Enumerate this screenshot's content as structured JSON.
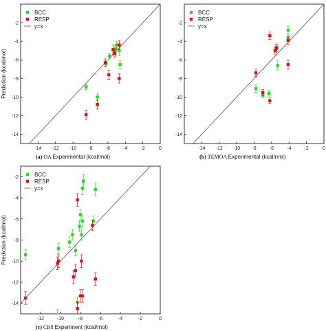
{
  "colors": {
    "BCC": "#22dd22",
    "RESP": "#dd1111",
    "y=x": "#555555"
  },
  "chart_data": [
    {
      "type": "scatter",
      "panel_label": "(a)",
      "panel_name": "OA",
      "xlabel": "Experimental (kcal/mol)",
      "ylabel": "Prediction (kcal/mol)",
      "xlim": [
        -16,
        0
      ],
      "ylim": [
        -15,
        0
      ],
      "xticks": [
        -14,
        -12,
        -10,
        -8,
        -6,
        -4,
        -2,
        0
      ],
      "yticks": [
        -14,
        -12,
        -10,
        -8,
        -6,
        -4,
        -2
      ],
      "show_ylabel": true,
      "legend": [
        "BCC",
        "RESP",
        "y=x"
      ],
      "series": [
        {
          "name": "BCC",
          "points": [
            {
              "x": -8.5,
              "y": -8.9,
              "e": 0.3
            },
            {
              "x": -7.2,
              "y": -10.0,
              "e": 0.4
            },
            {
              "x": -6.2,
              "y": -6.4,
              "e": 0.3
            },
            {
              "x": -5.8,
              "y": -5.6,
              "e": 0.3
            },
            {
              "x": -5.3,
              "y": -5.2,
              "e": 0.3
            },
            {
              "x": -5.0,
              "y": -4.4,
              "e": 0.4
            },
            {
              "x": -4.7,
              "y": -5.0,
              "e": 0.5
            },
            {
              "x": -4.6,
              "y": -6.5,
              "e": 0.4
            },
            {
              "x": -5.1,
              "y": -4.8,
              "e": 0.3
            }
          ]
        },
        {
          "name": "RESP",
          "points": [
            {
              "x": -8.5,
              "y": -11.9,
              "e": 0.5
            },
            {
              "x": -7.2,
              "y": -10.8,
              "e": 0.5
            },
            {
              "x": -6.3,
              "y": -6.3,
              "e": 0.4
            },
            {
              "x": -5.9,
              "y": -7.6,
              "e": 0.5
            },
            {
              "x": -5.4,
              "y": -4.9,
              "e": 0.5
            },
            {
              "x": -5.2,
              "y": -5.3,
              "e": 0.4
            },
            {
              "x": -4.7,
              "y": -4.4,
              "e": 0.5
            },
            {
              "x": -4.7,
              "y": -8.0,
              "e": 0.5
            }
          ]
        }
      ]
    },
    {
      "type": "scatter",
      "panel_label": "(b)",
      "panel_name": "TEMOA",
      "xlabel": "Experimental (kcal/mol)",
      "ylabel": "",
      "xlim": [
        -16,
        0
      ],
      "ylim": [
        -15,
        0
      ],
      "xticks": [
        -14,
        -12,
        -10,
        -8,
        -6,
        -4,
        -2,
        0
      ],
      "yticks": [
        -14,
        -12,
        -10,
        -8,
        -6,
        -4,
        -2
      ],
      "show_ylabel": false,
      "legend": [
        "BCC",
        "RESP",
        "y=x"
      ],
      "series": [
        {
          "name": "BCC",
          "points": [
            {
              "x": -7.8,
              "y": -9.1,
              "e": 0.4
            },
            {
              "x": -7.0,
              "y": -9.8,
              "e": 0.3
            },
            {
              "x": -6.3,
              "y": -9.6,
              "e": 0.3
            },
            {
              "x": -5.5,
              "y": -4.8,
              "e": 0.4
            },
            {
              "x": -5.3,
              "y": -6.6,
              "e": 0.5
            },
            {
              "x": -4.1,
              "y": -2.8,
              "e": 0.4
            },
            {
              "x": -4.1,
              "y": -3.6,
              "e": 0.4
            }
          ]
        },
        {
          "name": "RESP",
          "points": [
            {
              "x": -7.8,
              "y": -7.4,
              "e": 0.4
            },
            {
              "x": -7.0,
              "y": -9.5,
              "e": 0.3
            },
            {
              "x": -6.2,
              "y": -3.4,
              "e": 0.4
            },
            {
              "x": -6.2,
              "y": -10.4,
              "e": 0.3
            },
            {
              "x": -5.6,
              "y": -5.0,
              "e": 0.4
            },
            {
              "x": -5.4,
              "y": -4.7,
              "e": 0.4
            },
            {
              "x": -4.1,
              "y": -3.9,
              "e": 0.4
            },
            {
              "x": -4.1,
              "y": -6.5,
              "e": 0.5
            }
          ]
        }
      ]
    },
    {
      "type": "scatter",
      "panel_label": "(c)",
      "panel_name": "CB8",
      "xlabel": "Experiment (kcal/mol)",
      "ylabel": "Prediction (kcal/mol)",
      "xlim": [
        -14,
        0
      ],
      "ylim": [
        -15,
        -1
      ],
      "xticks": [
        -12,
        -10,
        -8,
        -6,
        -4,
        -2,
        0
      ],
      "yticks": [
        -14,
        -12,
        -10,
        -8,
        -6,
        -4,
        -2
      ],
      "show_ylabel": true,
      "legend": [
        "BCC",
        "RESP",
        "y=x"
      ],
      "series": [
        {
          "name": "BCC",
          "points": [
            {
              "x": -13.5,
              "y": -9.4,
              "e": 0.5
            },
            {
              "x": -10.2,
              "y": -8.8,
              "e": 0.5
            },
            {
              "x": -9.1,
              "y": -8.2,
              "e": 0.5
            },
            {
              "x": -8.8,
              "y": -7.5,
              "e": 0.5
            },
            {
              "x": -8.5,
              "y": -9.0,
              "e": 0.5
            },
            {
              "x": -8.3,
              "y": -13.9,
              "e": 0.5
            },
            {
              "x": -8.1,
              "y": -6.7,
              "e": 0.5
            },
            {
              "x": -8.0,
              "y": -5.6,
              "e": 0.5
            },
            {
              "x": -7.9,
              "y": -7.5,
              "e": 0.5
            },
            {
              "x": -7.8,
              "y": -6.2,
              "e": 0.5
            },
            {
              "x": -7.8,
              "y": -3.1,
              "e": 0.6
            },
            {
              "x": -7.7,
              "y": -2.4,
              "e": 0.6
            },
            {
              "x": -6.7,
              "y": -6.2,
              "e": 0.5
            },
            {
              "x": -6.5,
              "y": -3.2,
              "e": 0.6
            },
            {
              "x": -10.3,
              "y": -15.1,
              "e": 0.5
            }
          ]
        },
        {
          "name": "RESP",
          "points": [
            {
              "x": -13.5,
              "y": -13.5,
              "e": 0.6
            },
            {
              "x": -10.3,
              "y": -10.2,
              "e": 0.6
            },
            {
              "x": -10.2,
              "y": -10.0,
              "e": 0.6
            },
            {
              "x": -8.7,
              "y": -11.5,
              "e": 0.6
            },
            {
              "x": -8.5,
              "y": -10.9,
              "e": 0.6
            },
            {
              "x": -8.3,
              "y": -4.2,
              "e": 0.6
            },
            {
              "x": -8.3,
              "y": -14.5,
              "e": 0.6
            },
            {
              "x": -8.0,
              "y": -13.3,
              "e": 0.6
            },
            {
              "x": -7.9,
              "y": -10.0,
              "e": 0.6
            },
            {
              "x": -7.8,
              "y": -13.3,
              "e": 0.6
            },
            {
              "x": -6.8,
              "y": -6.6,
              "e": 0.5
            },
            {
              "x": -6.5,
              "y": -11.7,
              "e": 0.6
            }
          ]
        }
      ]
    }
  ]
}
